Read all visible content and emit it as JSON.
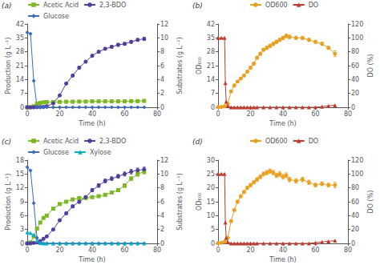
{
  "chart_data": [
    {
      "type": "line",
      "title": "(a)",
      "xlabel": "Time (h)",
      "ylabel": "Production (g L⁻¹)",
      "y2label": "Substrates (g L⁻¹)",
      "xlim": [
        0,
        80
      ],
      "xticks": [
        0,
        20,
        40,
        60,
        80
      ],
      "ylim": [
        0,
        42
      ],
      "yticks": [
        0,
        7,
        14,
        21,
        28,
        35,
        42
      ],
      "y2lim": [
        0,
        12
      ],
      "y2ticks": [
        0,
        2,
        4,
        6,
        8,
        10,
        12
      ],
      "legend": "upper left",
      "grid": false,
      "series": [
        {
          "name": "Acetic Acid",
          "color": "#7db724",
          "marker": "square",
          "x": [
            0,
            2,
            4,
            6,
            8,
            10,
            12,
            16,
            20,
            24,
            28,
            32,
            36,
            40,
            44,
            48,
            52,
            56,
            60,
            64,
            68,
            72
          ],
          "values": [
            0,
            0,
            0.5,
            1.8,
            2.2,
            2.5,
            2.6,
            2.6,
            2.7,
            2.8,
            2.8,
            2.9,
            2.9,
            3.0,
            3.0,
            3.0,
            3.0,
            3.0,
            3.0,
            3.1,
            3.1,
            3.2
          ],
          "yerr": [
            0,
            0,
            0.05,
            0.1,
            0.1,
            0.1,
            0.1,
            0.1,
            0.1,
            0.1,
            0.1,
            0.1,
            0.1,
            0.1,
            0.1,
            0.1,
            0.1,
            0.1,
            0.1,
            0.1,
            0.1,
            0.1
          ]
        },
        {
          "name": "2,3-BDO",
          "color": "#4e3f9e",
          "marker": "circle",
          "x": [
            0,
            2,
            4,
            6,
            8,
            10,
            12,
            16,
            20,
            24,
            28,
            32,
            36,
            40,
            44,
            48,
            52,
            56,
            60,
            64,
            68,
            72
          ],
          "values": [
            0,
            0,
            0,
            0.05,
            0.1,
            0.2,
            0.5,
            2.0,
            6,
            12,
            16,
            20,
            23,
            26,
            28,
            29.5,
            30.5,
            31.5,
            32,
            33,
            34,
            34.5
          ],
          "yerr": [
            0,
            0,
            0,
            0,
            0.05,
            0.05,
            0.1,
            0.15,
            0.3,
            0.4,
            0.5,
            0.5,
            0.6,
            0.6,
            0.6,
            0.6,
            0.7,
            0.7,
            0.7,
            0.7,
            0.7,
            0.8
          ]
        },
        {
          "name": "Glucose",
          "color": "#3b6bbf",
          "marker": "diamond",
          "axis": "y2",
          "x": [
            0,
            2,
            4,
            6,
            8,
            10,
            12,
            16,
            20,
            24,
            28,
            32,
            36,
            40,
            44,
            48,
            52,
            56,
            60,
            64,
            68,
            72
          ],
          "values": [
            10.8,
            10.6,
            3.8,
            0.1,
            0,
            0,
            0,
            0,
            0,
            0,
            0,
            0,
            0,
            0,
            0,
            0,
            0,
            0,
            0,
            0,
            0,
            0
          ]
        }
      ]
    },
    {
      "type": "line",
      "title": "(b)",
      "xlabel": "Time (h)",
      "ylabel": "OD₆₀₀",
      "y2label": "DO (%)",
      "xlim": [
        0,
        80
      ],
      "xticks": [
        0,
        20,
        40,
        60,
        80
      ],
      "ylim": [
        0,
        42
      ],
      "yticks": [
        0,
        7,
        14,
        21,
        28,
        35,
        42
      ],
      "y2lim": [
        0,
        120
      ],
      "y2ticks": [
        0,
        20,
        40,
        60,
        80,
        100,
        120
      ],
      "legend": "upper center",
      "grid": false,
      "series": [
        {
          "name": "OD600",
          "color": "#e8a020",
          "marker": "circle",
          "x": [
            0,
            2,
            4,
            6,
            8,
            10,
            12,
            14,
            16,
            18,
            20,
            22,
            24,
            26,
            28,
            30,
            32,
            34,
            36,
            38,
            40,
            42,
            44,
            48,
            52,
            56,
            60,
            64,
            68,
            72
          ],
          "values": [
            0.1,
            0.15,
            0.5,
            1.8,
            8,
            11,
            13,
            14.5,
            16,
            18,
            20,
            22,
            25,
            27,
            29,
            30,
            31,
            32,
            33,
            34,
            35,
            36,
            35.5,
            35,
            35,
            34,
            33,
            32,
            30,
            27
          ],
          "yerr": [
            0,
            0,
            0,
            0.1,
            0.3,
            0.4,
            0.4,
            0.4,
            0.5,
            0.5,
            0.6,
            0.6,
            0.7,
            0.7,
            0.7,
            0.8,
            0.8,
            0.8,
            0.8,
            0.8,
            0.9,
            0.9,
            0.9,
            0.9,
            0.8,
            0.8,
            0.8,
            0.8,
            0.7,
            1.5
          ]
        },
        {
          "name": "DO",
          "color": "#c0392b",
          "marker": "triangle",
          "axis": "y2",
          "x": [
            0,
            2,
            4,
            4.5,
            5,
            6,
            8,
            10,
            12,
            14,
            16,
            18,
            20,
            22,
            24,
            28,
            32,
            36,
            40,
            44,
            48,
            52,
            56,
            60,
            64,
            68,
            72
          ],
          "values": [
            100,
            100,
            100,
            35,
            8,
            2,
            0,
            0,
            0,
            0,
            0,
            0,
            0,
            0,
            0,
            0,
            0,
            0,
            0,
            0,
            0,
            0,
            0,
            0,
            1,
            2,
            3
          ]
        }
      ]
    },
    {
      "type": "line",
      "title": "(c)",
      "xlabel": "Time (h)",
      "ylabel": "Production (g L⁻¹)",
      "y2label": "Substrates (g L⁻¹)",
      "xlim": [
        0,
        80
      ],
      "xticks": [
        0,
        20,
        40,
        60,
        80
      ],
      "ylim": [
        0,
        18
      ],
      "yticks": [
        0,
        3,
        6,
        9,
        12,
        15,
        18
      ],
      "y2lim": [
        0,
        12
      ],
      "y2ticks": [
        0,
        2,
        4,
        6,
        8,
        10,
        12
      ],
      "legend": "upper left",
      "grid": false,
      "series": [
        {
          "name": "Acetic Acid",
          "color": "#7db724",
          "marker": "square",
          "x": [
            0,
            2,
            4,
            6,
            8,
            10,
            12,
            16,
            20,
            24,
            28,
            32,
            36,
            40,
            44,
            48,
            52,
            56,
            60,
            64,
            68,
            72
          ],
          "values": [
            0,
            0.2,
            1.5,
            3.2,
            4.5,
            5.5,
            6.0,
            7.5,
            8.5,
            9.0,
            9.5,
            9.8,
            9.8,
            10.0,
            10.2,
            10.5,
            11.0,
            11.5,
            12.5,
            14.0,
            15.0,
            15.5
          ],
          "yerr": [
            0,
            0.05,
            0.1,
            0.15,
            0.15,
            0.2,
            0.2,
            0.2,
            0.25,
            0.25,
            0.25,
            0.25,
            0.25,
            0.25,
            0.25,
            0.3,
            0.3,
            0.3,
            0.4,
            0.4,
            0.5,
            0.5
          ]
        },
        {
          "name": "2,3-BDO",
          "color": "#4e3f9e",
          "marker": "circle",
          "x": [
            0,
            2,
            4,
            6,
            8,
            10,
            12,
            16,
            20,
            24,
            28,
            32,
            36,
            40,
            44,
            48,
            52,
            56,
            60,
            64,
            68,
            72
          ],
          "values": [
            0,
            0,
            0.1,
            0.2,
            0.5,
            1.0,
            1.5,
            3.0,
            5.0,
            6.5,
            8.0,
            9.0,
            10.0,
            11.5,
            12.5,
            13.5,
            14.0,
            14.5,
            15.0,
            15.5,
            15.8,
            16.0
          ],
          "yerr": [
            0,
            0,
            0.05,
            0.05,
            0.1,
            0.1,
            0.1,
            0.15,
            0.2,
            0.25,
            0.3,
            0.3,
            0.3,
            0.35,
            0.4,
            0.4,
            0.4,
            0.4,
            0.45,
            0.5,
            0.5,
            0.5
          ]
        },
        {
          "name": "Glucose",
          "color": "#3b6bbf",
          "marker": "diamond",
          "axis": "y2",
          "x": [
            0,
            2,
            4,
            6,
            8,
            10,
            12,
            16,
            20,
            24,
            28,
            32,
            36,
            40,
            44,
            48,
            52,
            56,
            60,
            64,
            68,
            72
          ],
          "values": [
            11,
            10.5,
            5.8,
            0.8,
            0.1,
            0,
            0,
            0,
            0,
            0,
            0,
            0,
            0,
            0,
            0,
            0,
            0,
            0,
            0,
            0,
            0,
            0
          ]
        },
        {
          "name": "Xylose",
          "color": "#00b0c8",
          "marker": "triangle",
          "axis": "y2",
          "x": [
            0,
            2,
            4,
            6,
            8,
            10,
            12,
            16,
            20,
            24,
            28,
            32,
            36,
            40,
            44,
            48,
            52,
            56,
            60,
            64,
            68,
            72
          ],
          "values": [
            1.6,
            1.5,
            1.2,
            0.4,
            0.05,
            0,
            0,
            0,
            0,
            0,
            0,
            0,
            0,
            0,
            0,
            0,
            0,
            0,
            0,
            0,
            0,
            0
          ]
        }
      ]
    },
    {
      "type": "line",
      "title": "(d)",
      "xlabel": "Time (h)",
      "ylabel": "OD₆₀₀",
      "y2label": "DO (%)",
      "xlim": [
        0,
        80
      ],
      "xticks": [
        0,
        20,
        40,
        60,
        80
      ],
      "ylim": [
        0,
        30
      ],
      "yticks": [
        0,
        5,
        10,
        15,
        20,
        25,
        30
      ],
      "y2lim": [
        0,
        120
      ],
      "y2ticks": [
        0,
        20,
        40,
        60,
        80,
        100,
        120
      ],
      "legend": "upper center",
      "grid": false,
      "series": [
        {
          "name": "OD600",
          "color": "#e8a020",
          "marker": "circle",
          "x": [
            0,
            2,
            4,
            6,
            8,
            10,
            12,
            14,
            16,
            18,
            20,
            22,
            24,
            26,
            28,
            30,
            32,
            34,
            36,
            38,
            40,
            42,
            44,
            48,
            52,
            56,
            60,
            64,
            68,
            72
          ],
          "values": [
            0.1,
            0.2,
            0.6,
            2.0,
            8,
            12,
            15,
            17,
            18.5,
            20,
            21,
            22,
            23,
            24,
            25,
            25.5,
            26,
            25.5,
            24.5,
            25,
            24,
            24.5,
            23,
            22.5,
            23,
            22,
            21,
            21.5,
            21,
            21
          ],
          "yerr": [
            0,
            0,
            0,
            0.1,
            0.3,
            0.4,
            0.5,
            0.5,
            0.5,
            0.6,
            0.6,
            0.6,
            0.7,
            0.7,
            0.7,
            0.8,
            0.8,
            0.8,
            0.8,
            0.9,
            0.9,
            0.9,
            0.8,
            0.8,
            0.8,
            0.8,
            0.7,
            0.7,
            0.7,
            1.0
          ]
        },
        {
          "name": "DO",
          "color": "#c0392b",
          "marker": "triangle",
          "axis": "y2",
          "x": [
            0,
            2,
            4,
            4.5,
            5,
            6,
            8,
            10,
            12,
            14,
            16,
            18,
            20,
            22,
            24,
            28,
            32,
            36,
            40,
            44,
            48,
            52,
            56,
            60,
            64,
            68,
            72
          ],
          "values": [
            100,
            100,
            100,
            30,
            8,
            2,
            0,
            0,
            0,
            0,
            0,
            0,
            0,
            0,
            0,
            0,
            0,
            0,
            0,
            0,
            0,
            0,
            0,
            1,
            2,
            3,
            4
          ]
        }
      ]
    }
  ]
}
